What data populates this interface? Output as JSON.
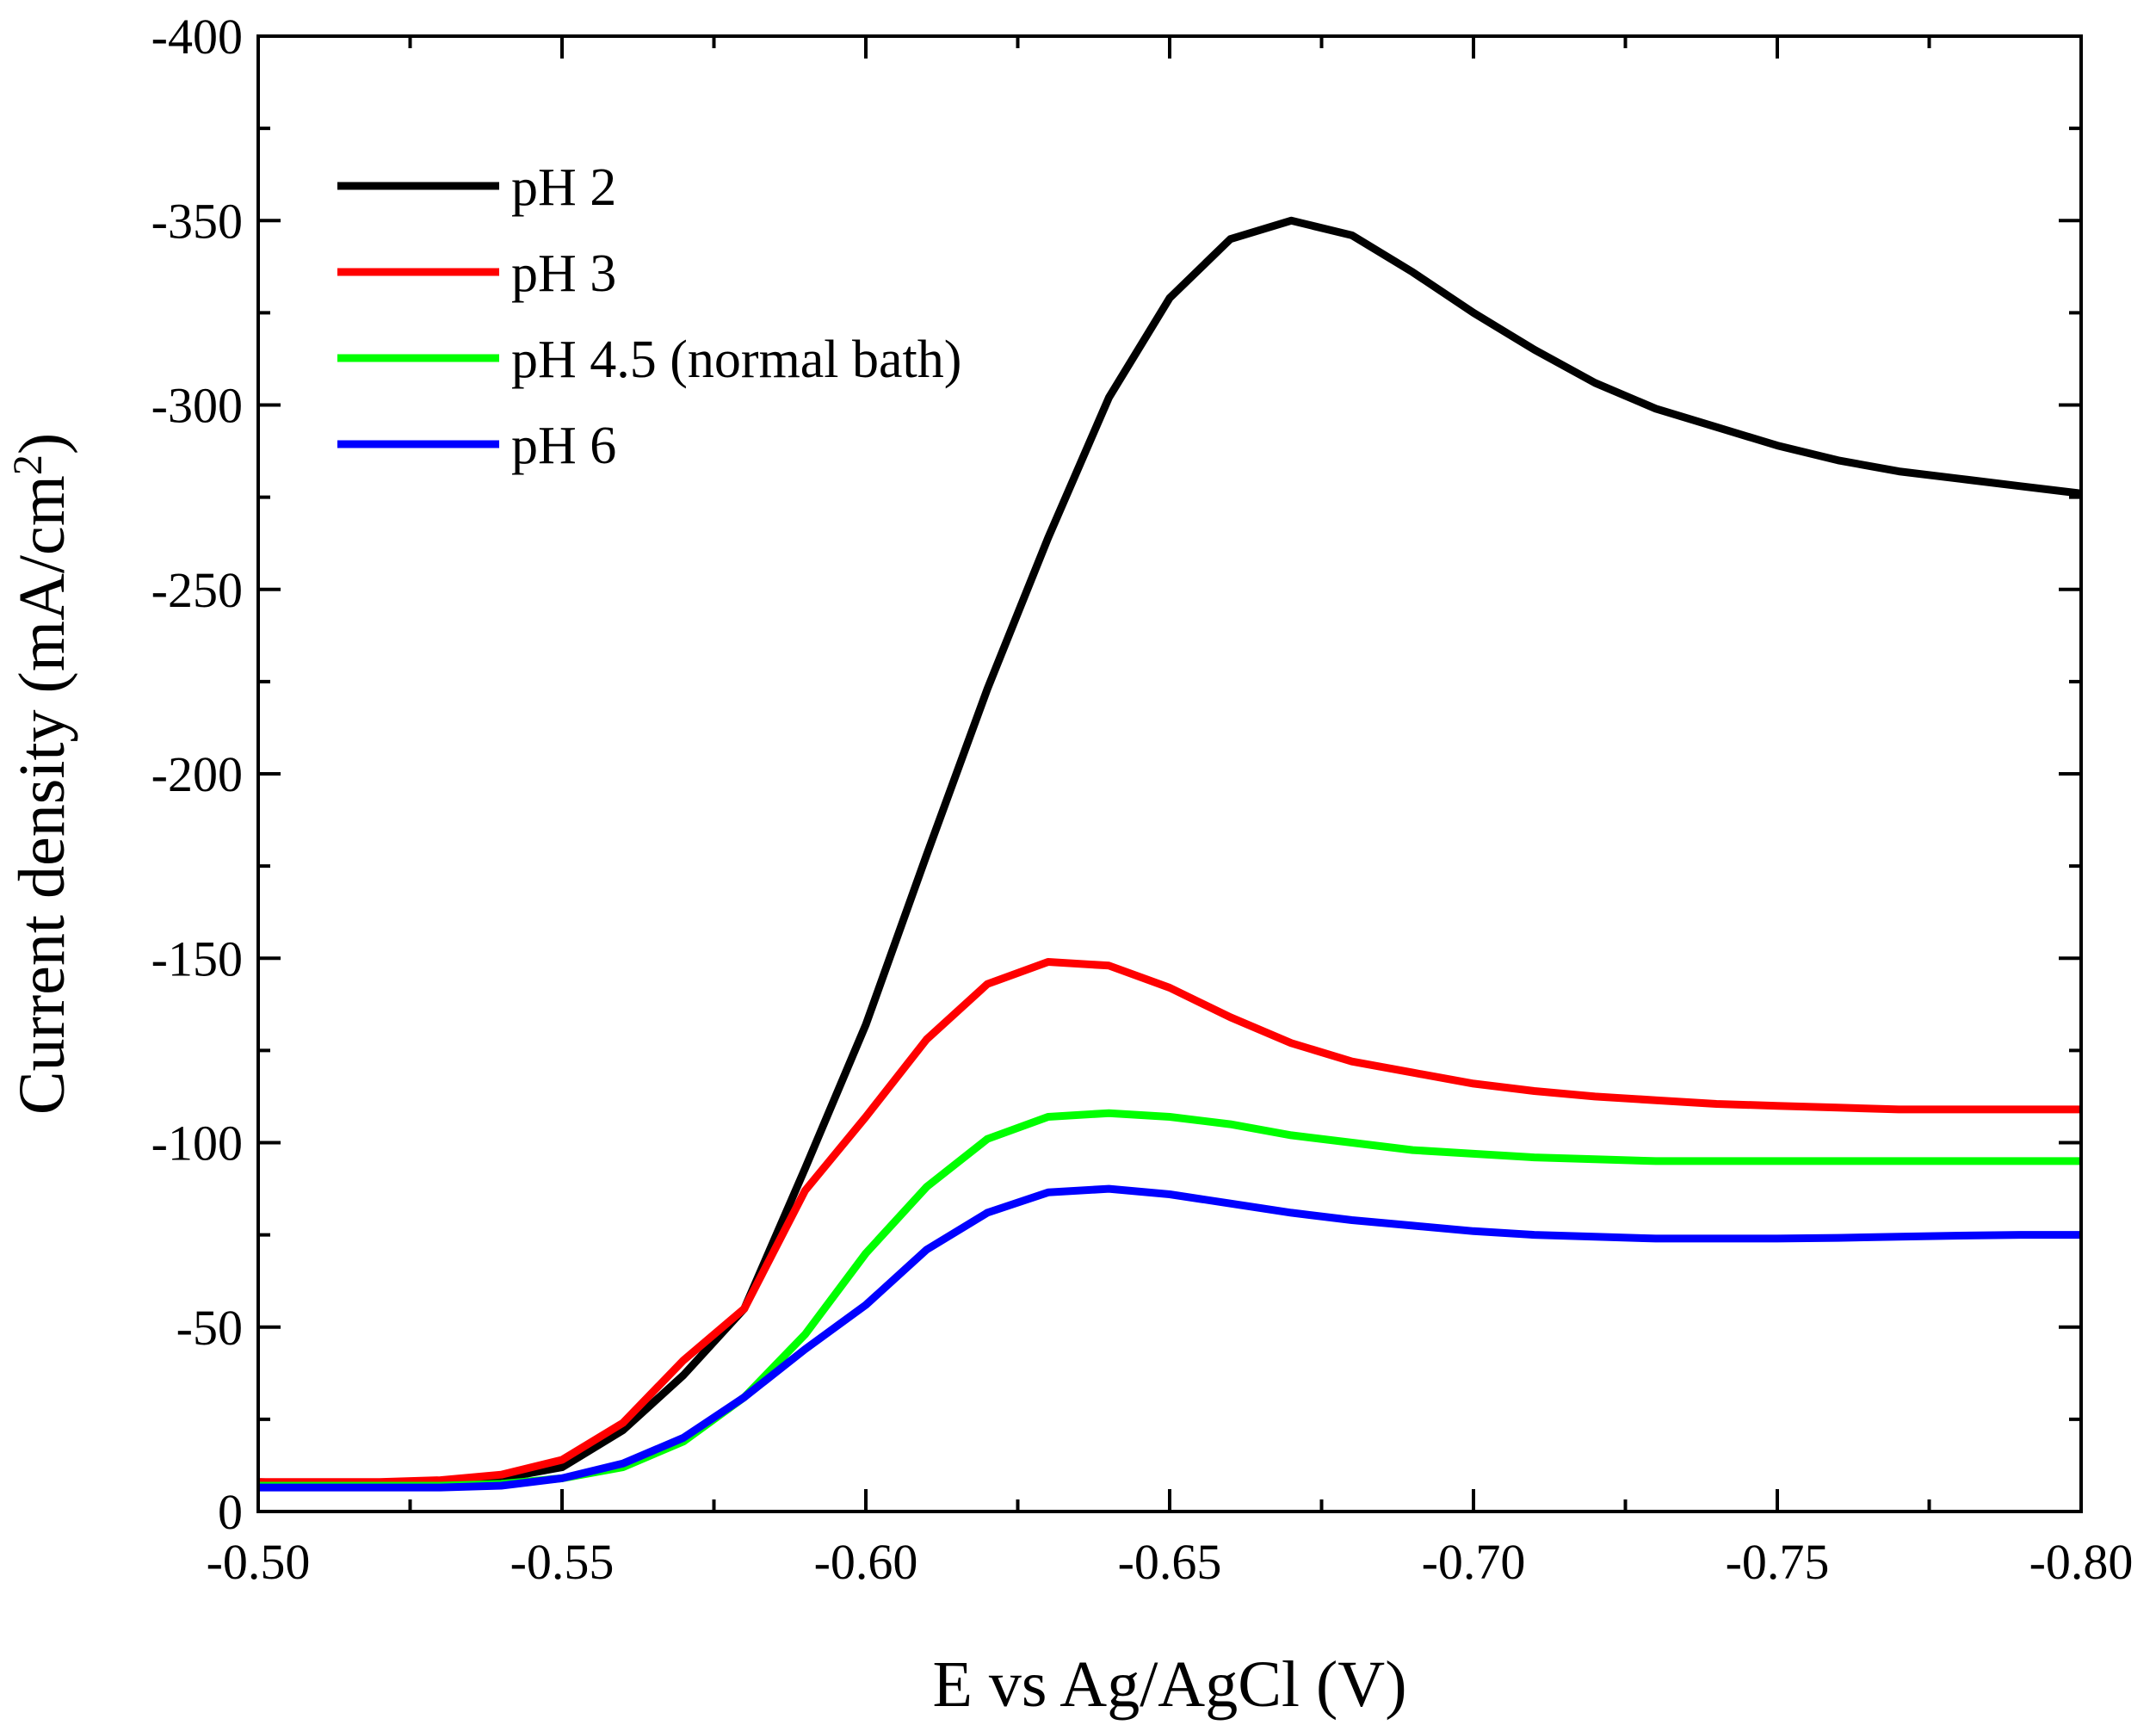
{
  "chart_data": {
    "type": "line",
    "title": "",
    "xlabel": "E vs Ag/AgCl  (V)",
    "ylabel_main": "Current density (mA/cm",
    "ylabel_sup": "2",
    "ylabel_end": ")",
    "xlim": [
      -0.5,
      -0.8
    ],
    "ylim": [
      0,
      -400
    ],
    "x_ticks": [
      -0.5,
      -0.55,
      -0.6,
      -0.65,
      -0.7,
      -0.75,
      -0.8
    ],
    "x_tick_labels": [
      "-0.50",
      "-0.55",
      "-0.60",
      "-0.65",
      "-0.70",
      "-0.75",
      "-0.80"
    ],
    "y_ticks": [
      0,
      -50,
      -100,
      -150,
      -200,
      -250,
      -300,
      -350,
      -400
    ],
    "y_tick_labels": [
      "0",
      "-50",
      "-100",
      "-150",
      "-200",
      "-250",
      "-300",
      "-350",
      "-400"
    ],
    "grid": false,
    "legend_position": "top-left",
    "x": [
      -0.5,
      -0.51,
      -0.52,
      -0.53,
      -0.54,
      -0.55,
      -0.56,
      -0.57,
      -0.58,
      -0.59,
      -0.6,
      -0.61,
      -0.62,
      -0.63,
      -0.64,
      -0.65,
      -0.66,
      -0.67,
      -0.68,
      -0.69,
      -0.7,
      -0.71,
      -0.72,
      -0.73,
      -0.74,
      -0.75,
      -0.76,
      -0.77,
      -0.78,
      -0.79,
      -0.8
    ],
    "series": [
      {
        "name": "pH 2",
        "color": "#000000",
        "values": [
          -8,
          -7.5,
          -7.5,
          -8,
          -9,
          -12,
          -22,
          -37,
          -55,
          -93,
          -132,
          -178,
          -223,
          -264,
          -302,
          -329,
          -345,
          -350,
          -346,
          -336,
          -325,
          -315,
          -306,
          -299,
          -294,
          -289,
          -285,
          -282,
          -280,
          -278,
          -276
        ]
      },
      {
        "name": "pH 3",
        "color": "#ff0000",
        "values": [
          -8,
          -8,
          -8,
          -8.5,
          -10,
          -14,
          -24,
          -41,
          -55,
          -87,
          -107,
          -128,
          -143,
          -149,
          -148,
          -142,
          -134,
          -127,
          -122,
          -119,
          -116,
          -114,
          -112.5,
          -111.5,
          -110.5,
          -110,
          -109.5,
          -109,
          -109,
          -109,
          -109
        ]
      },
      {
        "name": "pH 4.5 (normal bath)",
        "color": "#00ff00",
        "values": [
          -7,
          -7,
          -7,
          -7,
          -7.5,
          -9,
          -12,
          -19,
          -31,
          -48,
          -70,
          -88,
          -101,
          -107,
          -108,
          -107,
          -105,
          -102,
          -100,
          -98,
          -97,
          -96,
          -95.5,
          -95,
          -95,
          -95,
          -95,
          -95,
          -95,
          -95,
          -95
        ]
      },
      {
        "name": "pH 6",
        "color": "#0000ff",
        "values": [
          -6.5,
          -6.5,
          -6.5,
          -6.5,
          -7,
          -9,
          -13,
          -20,
          -31,
          -44,
          -56,
          -71,
          -81,
          -86.5,
          -87.5,
          -86,
          -83.5,
          -81,
          -79,
          -77.5,
          -76,
          -75,
          -74.5,
          -74,
          -74,
          -74,
          -74.2,
          -74.5,
          -74.8,
          -75,
          -75
        ]
      }
    ]
  }
}
